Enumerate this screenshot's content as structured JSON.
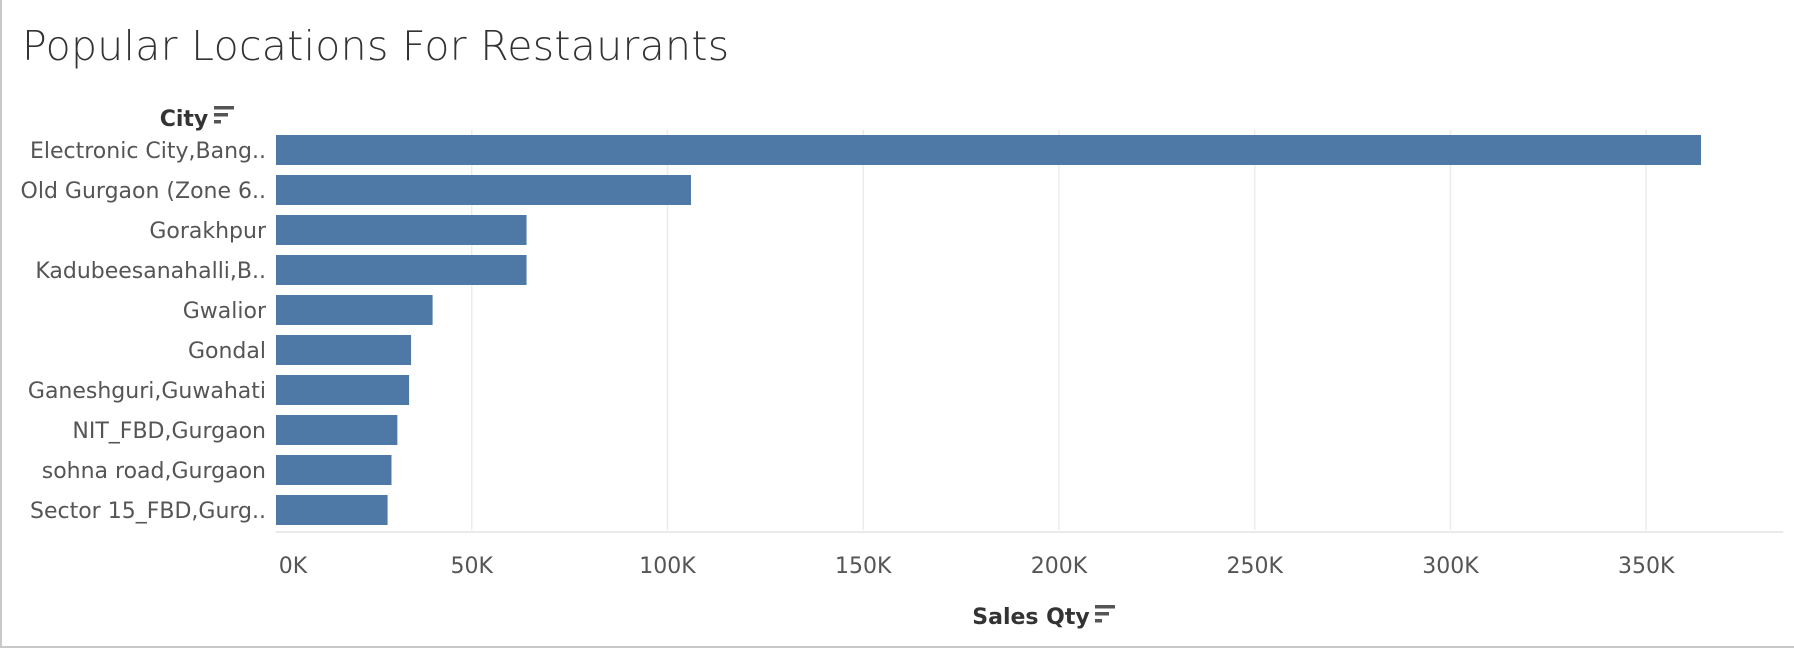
{
  "title": "Popular Locations For Restaurants",
  "colors": {
    "bar": "#4e79a7",
    "grid": "#ececec",
    "text": "#555555"
  },
  "icons": {
    "row_sort": "sort-descending-icon",
    "col_sort": "sort-descending-icon"
  },
  "chart_data": {
    "type": "bar",
    "orientation": "horizontal",
    "title": "Popular Locations For Restaurants",
    "ylabel": "City",
    "xlabel": "Sales Qty",
    "categories": [
      "Electronic City,Bang..",
      "Old Gurgaon (Zone 6..",
      "Gorakhpur",
      "Kadubeesanahalli,B..",
      "Gwalior",
      "Gondal",
      "Ganeshguri,Guwahati",
      "NIT_FBD,Gurgaon",
      "sohna road,Gurgaon",
      "Sector 15_FBD,Gurg.."
    ],
    "values": [
      364000,
      106000,
      64000,
      64000,
      40000,
      34500,
      34000,
      31000,
      29500,
      28500
    ],
    "xlim": [
      0,
      385000
    ],
    "x_ticks": [
      0,
      50000,
      100000,
      150000,
      200000,
      250000,
      300000,
      350000
    ],
    "x_tick_labels": [
      "0K",
      "50K",
      "100K",
      "150K",
      "200K",
      "250K",
      "300K",
      "350K"
    ],
    "grid": true,
    "legend": "none"
  }
}
